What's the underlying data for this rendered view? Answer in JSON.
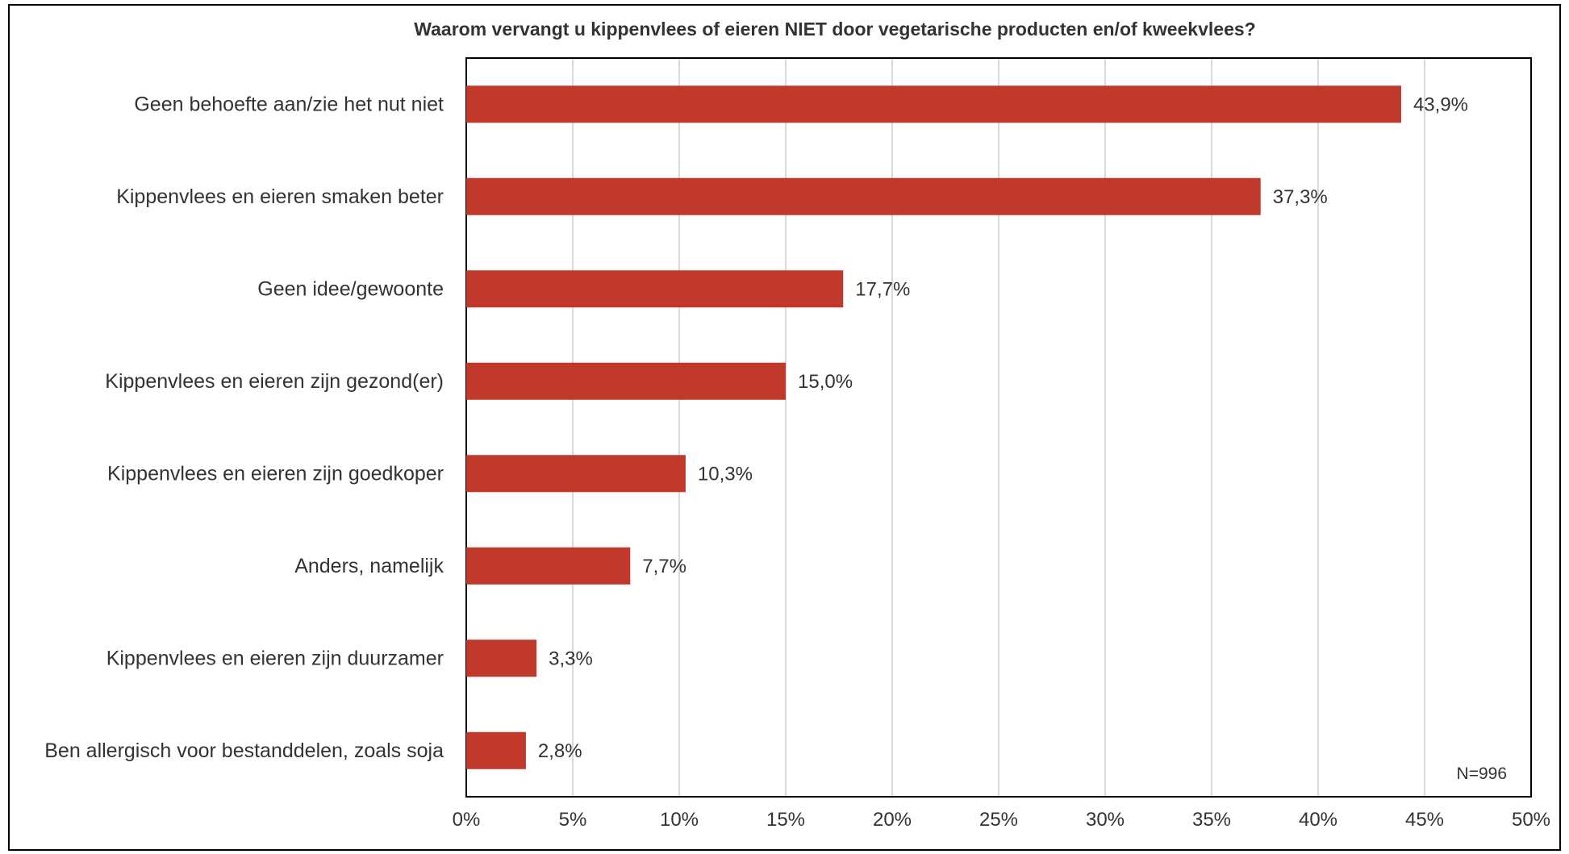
{
  "chart_data": {
    "type": "bar",
    "orientation": "horizontal",
    "title": "Waarom vervangt u kippenvlees of eieren NIET door vegetarische producten en/of kweekvlees?",
    "categories": [
      "Geen behoefte aan/zie het nut niet",
      "Kippenvlees en eieren smaken beter",
      "Geen idee/gewoonte",
      "Kippenvlees en eieren zijn gezond(er)",
      "Kippenvlees en eieren zijn goedkoper",
      "Anders, namelijk",
      "Kippenvlees en eieren zijn duurzamer",
      "Ben allergisch voor bestanddelen, zoals soja"
    ],
    "values": [
      43.9,
      37.3,
      17.7,
      15.0,
      10.3,
      7.7,
      3.3,
      2.8
    ],
    "data_labels": [
      "43,9%",
      "37,3%",
      "17,7%",
      "15,0%",
      "10,3%",
      "7,7%",
      "3,3%",
      "2,8%"
    ],
    "xlim": [
      0,
      50
    ],
    "x_ticks": [
      "0%",
      "5%",
      "10%",
      "15%",
      "20%",
      "25%",
      "30%",
      "35%",
      "40%",
      "45%",
      "50%"
    ],
    "grid": "vertical",
    "note": "N=996",
    "bar_color": "#C0392B",
    "grid_color": "#D9D9D9"
  }
}
